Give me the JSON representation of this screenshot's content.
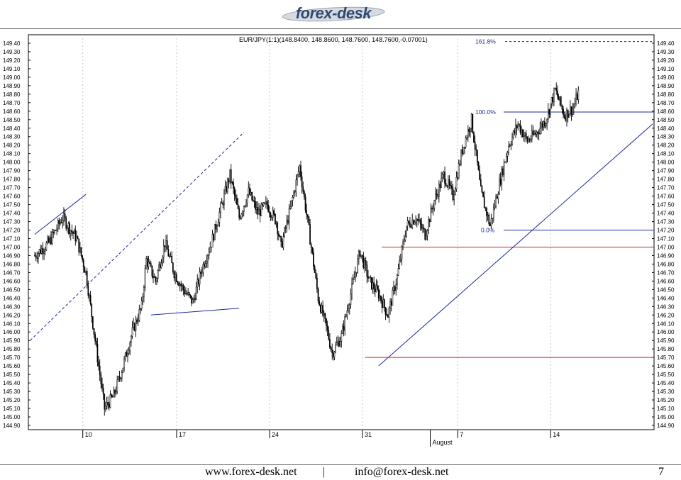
{
  "logo": {
    "text": "forex-desk"
  },
  "footer": {
    "website": "www.forex-desk.net",
    "separator": "|",
    "email": "info@forex-desk.net",
    "page_number": "7"
  },
  "chart_data": {
    "type": "candlestick",
    "title": "EUR/JPY(1:1)(148.8400, 148.8600, 148.7600, 148.7600,-0.07001)",
    "ylim": [
      144.85,
      149.5
    ],
    "yticks": [
      "144.90",
      "145.00",
      "145.10",
      "145.20",
      "145.30",
      "145.40",
      "145.50",
      "145.60",
      "145.70",
      "145.80",
      "145.90",
      "146.00",
      "146.10",
      "146.20",
      "146.30",
      "146.40",
      "146.50",
      "146.60",
      "146.70",
      "146.80",
      "146.90",
      "147.00",
      "147.10",
      "147.20",
      "147.30",
      "147.40",
      "147.50",
      "147.60",
      "147.70",
      "147.80",
      "147.90",
      "148.00",
      "148.10",
      "148.20",
      "148.30",
      "148.40",
      "148.50",
      "148.60",
      "148.70",
      "148.80",
      "148.90",
      "149.00",
      "149.10",
      "149.20",
      "149.30",
      "149.40"
    ],
    "xticks": [
      "10",
      "17",
      "24",
      "31",
      "7",
      "14"
    ],
    "month_label": "August",
    "grid": "vertical dotted",
    "price_path": [
      [
        0,
        146.9
      ],
      [
        3,
        147.05
      ],
      [
        6,
        147.35
      ],
      [
        9,
        147.1
      ],
      [
        11,
        146.7
      ],
      [
        12,
        146.3
      ],
      [
        14,
        145.5
      ],
      [
        15,
        145.1
      ],
      [
        17,
        145.25
      ],
      [
        19,
        145.6
      ],
      [
        21,
        146.0
      ],
      [
        23,
        146.3
      ],
      [
        24,
        146.85
      ],
      [
        26,
        146.6
      ],
      [
        28,
        147.05
      ],
      [
        30,
        146.7
      ],
      [
        32,
        146.5
      ],
      [
        34,
        146.35
      ],
      [
        36,
        146.75
      ],
      [
        38,
        147.05
      ],
      [
        40,
        147.45
      ],
      [
        42,
        147.85
      ],
      [
        44,
        147.35
      ],
      [
        46,
        147.65
      ],
      [
        48,
        147.4
      ],
      [
        50,
        147.5
      ],
      [
        52,
        147.3
      ],
      [
        53,
        147.0
      ],
      [
        55,
        147.45
      ],
      [
        57,
        147.95
      ],
      [
        59,
        147.2
      ],
      [
        61,
        146.4
      ],
      [
        63,
        146.0
      ],
      [
        64,
        145.75
      ],
      [
        66,
        145.95
      ],
      [
        68,
        146.45
      ],
      [
        70,
        146.95
      ],
      [
        72,
        146.6
      ],
      [
        74,
        146.45
      ],
      [
        76,
        146.2
      ],
      [
        78,
        146.65
      ],
      [
        80,
        147.25
      ],
      [
        82,
        147.35
      ],
      [
        84,
        147.15
      ],
      [
        86,
        147.55
      ],
      [
        88,
        147.85
      ],
      [
        90,
        147.6
      ],
      [
        92,
        148.15
      ],
      [
        94,
        148.5
      ],
      [
        96,
        147.65
      ],
      [
        98,
        147.25
      ],
      [
        100,
        147.75
      ],
      [
        102,
        148.2
      ],
      [
        104,
        148.45
      ],
      [
        106,
        148.25
      ],
      [
        108,
        148.35
      ],
      [
        110,
        148.5
      ],
      [
        112,
        148.85
      ],
      [
        114,
        148.55
      ],
      [
        116,
        148.65
      ],
      [
        117,
        148.82
      ]
    ],
    "fibonacci": {
      "levels": [
        {
          "label": "161.8%",
          "value": 149.42
        },
        {
          "label": "100.0%",
          "value": 148.59
        },
        {
          "label": "0.0%",
          "value": 147.2
        }
      ]
    },
    "horizontal_lines": [
      147.0,
      145.7
    ],
    "trendlines": [
      {
        "style": "solid",
        "from": [
          0,
          147.15
        ],
        "to": [
          11,
          147.62
        ]
      },
      {
        "style": "dashed",
        "from": [
          -1,
          145.9
        ],
        "to": [
          45,
          148.35
        ]
      },
      {
        "style": "solid",
        "from": [
          25,
          146.2
        ],
        "to": [
          44,
          146.28
        ]
      },
      {
        "style": "solid",
        "from": [
          74,
          145.6
        ],
        "to": [
          133,
          148.45
        ]
      }
    ],
    "colors": {
      "candles": "#000000",
      "trendline": "#1a2a9a",
      "support": "#d21e1e",
      "grid": "#c8c8c8",
      "fib_text": "#1a2a9a"
    }
  }
}
